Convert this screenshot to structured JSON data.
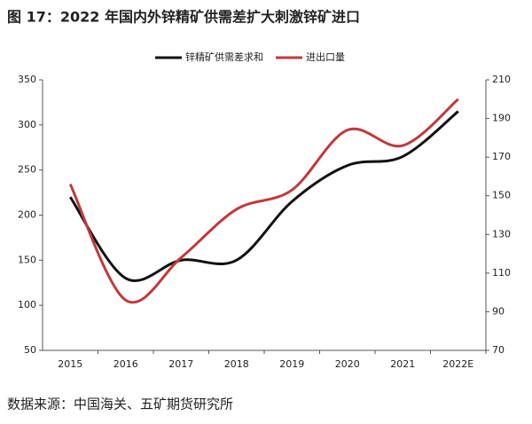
{
  "chart_data": {
    "type": "line",
    "title": "图 17：2022 年国内外锌精矿供需差扩大刺激锌矿进口",
    "source": "数据来源：中国海关、五矿期货研究所",
    "categories": [
      "2015",
      "2016",
      "2017",
      "2018",
      "2019",
      "2020",
      "2021",
      "2022E"
    ],
    "series": [
      {
        "name": "锌精矿供需差求和",
        "color": "#111111",
        "values": [
          220,
          130,
          150,
          150,
          215,
          255,
          265,
          315
        ]
      },
      {
        "name": "进出口量",
        "color": "#c0393b",
        "axis": "y2",
        "values": [
          156,
          96,
          118,
          143,
          153,
          184,
          176,
          200
        ]
      }
    ],
    "ylim": [
      50,
      350
    ],
    "yticks": [
      50,
      100,
      150,
      200,
      250,
      300,
      350
    ],
    "y2lim": [
      70,
      210
    ],
    "y2ticks": [
      70,
      90,
      110,
      130,
      150,
      170,
      190,
      210
    ],
    "legend": "top",
    "smooth": true
  }
}
